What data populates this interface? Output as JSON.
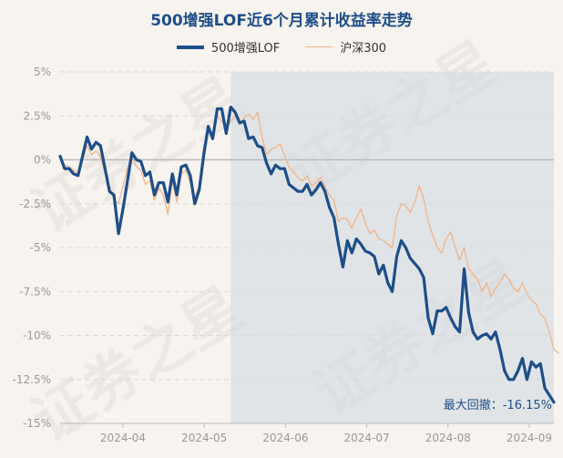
{
  "chart_data": {
    "type": "line",
    "title": "500增强LOF近6个月累计收益率走势",
    "series": [
      {
        "name": "500增强LOF",
        "color": "#1d4e89",
        "values": [
          0.2,
          -0.5,
          -0.5,
          -0.8,
          -0.9,
          0.2,
          1.3,
          0.6,
          1.0,
          0.8,
          -0.5,
          -1.8,
          -2.0,
          -4.2,
          -2.8,
          -1.2,
          0.4,
          0.0,
          -0.1,
          -0.9,
          -0.7,
          -2.0,
          -1.3,
          -1.3,
          -2.4,
          -0.8,
          -2.0,
          -0.4,
          -0.3,
          -0.9,
          -2.5,
          -1.7,
          0.3,
          1.9,
          1.2,
          2.9,
          2.9,
          1.5,
          3.0,
          2.7,
          2.1,
          2.2,
          1.2,
          1.3,
          0.8,
          0.7,
          -0.2,
          -0.8,
          -0.3,
          -0.5,
          -0.5,
          -1.4,
          -1.6,
          -1.8,
          -1.8,
          -1.4,
          -2.0,
          -1.7,
          -1.3,
          -1.8,
          -2.7,
          -3.3,
          -4.8,
          -6.1,
          -4.6,
          -5.3,
          -4.5,
          -4.8,
          -5.2,
          -5.3,
          -5.5,
          -6.5,
          -6.0,
          -7.0,
          -7.5,
          -5.5,
          -4.6,
          -5.0,
          -5.6,
          -5.9,
          -6.2,
          -6.7,
          -9.0,
          -9.9,
          -8.6,
          -8.6,
          -8.4,
          -9.0,
          -9.5,
          -9.8,
          -6.2,
          -8.7,
          -9.8,
          -10.2,
          -10.0,
          -9.9,
          -10.2,
          -9.8,
          -10.8,
          -12.0,
          -12.5,
          -12.5,
          -12.0,
          -11.3,
          -12.5,
          -11.5,
          -11.8,
          -11.6,
          -13.0,
          -13.4,
          -13.8
        ]
      },
      {
        "name": "沪深300",
        "color": "#f0b58a",
        "values": [
          0.1,
          -0.3,
          -0.4,
          -0.6,
          -0.7,
          0.0,
          0.8,
          0.3,
          0.5,
          0.2,
          -0.8,
          -1.5,
          -2.3,
          -2.5,
          -1.5,
          -0.5,
          0.2,
          -0.4,
          -0.6,
          -1.4,
          -1.2,
          -2.3,
          -1.6,
          -2.0,
          -3.1,
          -1.2,
          -2.4,
          -0.8,
          -0.6,
          -1.3,
          -2.1,
          -1.5,
          0.8,
          1.7,
          1.5,
          2.5,
          2.2,
          1.8,
          2.2,
          2.5,
          2.0,
          2.4,
          2.6,
          2.3,
          2.7,
          1.3,
          0.3,
          0.6,
          0.7,
          0.9,
          0.2,
          -0.4,
          -0.7,
          -1.0,
          -1.2,
          -0.9,
          -1.5,
          -1.3,
          -1.0,
          -1.5,
          -2.0,
          -2.3,
          -3.5,
          -3.3,
          -3.4,
          -3.9,
          -3.3,
          -2.8,
          -3.6,
          -4.2,
          -4.0,
          -4.5,
          -4.6,
          -4.8,
          -5.0,
          -3.2,
          -2.5,
          -2.6,
          -3.0,
          -2.4,
          -1.5,
          -2.2,
          -3.5,
          -4.3,
          -5.0,
          -5.3,
          -4.5,
          -4.1,
          -5.0,
          -5.7,
          -5.0,
          -6.2,
          -6.5,
          -6.8,
          -7.5,
          -7.0,
          -7.8,
          -7.3,
          -7.0,
          -6.5,
          -6.8,
          -7.3,
          -7.5,
          -7.0,
          -7.6,
          -8.0,
          -8.2,
          -8.8,
          -9.0,
          -9.8,
          -10.8,
          -11.0
        ]
      }
    ],
    "x_labels": [
      "2024-04",
      "2024-05",
      "2024-06",
      "2024-07",
      "2024-08",
      "2024-09"
    ],
    "y_ticks": [
      "5%",
      "2.5%",
      "0%",
      "-2.5%",
      "-5%",
      "-7.5%",
      "-10%",
      "-12.5%",
      "-15%"
    ],
    "ylim": [
      -15,
      5
    ],
    "grid": true,
    "legend_position": "top-center",
    "annotation": "最大回撤：-16.15%"
  },
  "watermarks": [
    "证券之星",
    "证券之星",
    "证券之星",
    "证券之星"
  ]
}
